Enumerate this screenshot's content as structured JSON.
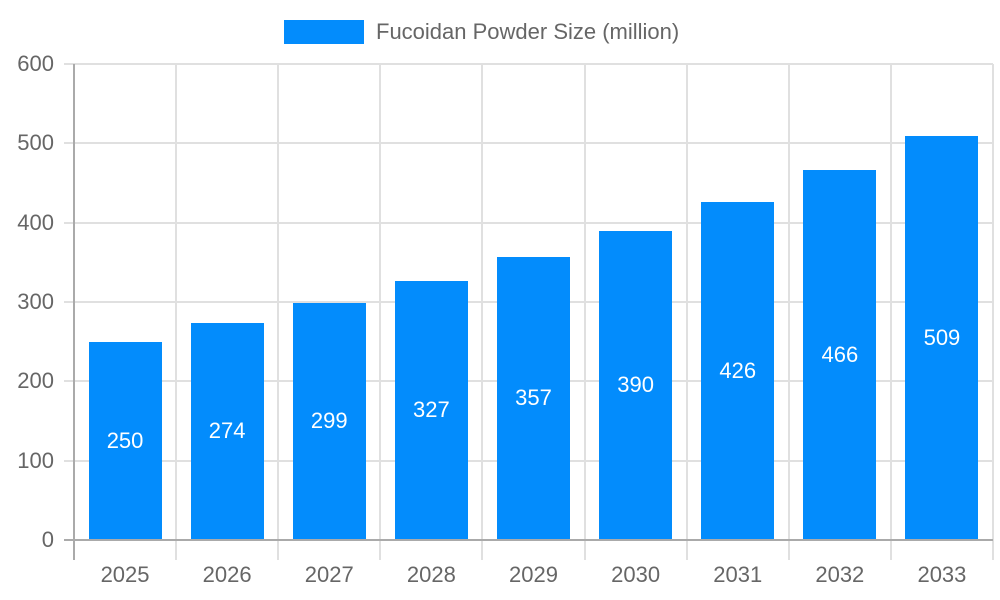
{
  "chart_data": {
    "type": "bar",
    "title": "",
    "legend": [
      {
        "label": "Fucoidan Powder Size (million)",
        "color": "#038cfc"
      }
    ],
    "legend_position": "top",
    "categories": [
      "2025",
      "2026",
      "2027",
      "2028",
      "2029",
      "2030",
      "2031",
      "2032",
      "2033"
    ],
    "series": [
      {
        "name": "Fucoidan Powder Size (million)",
        "values": [
          250,
          274,
          299,
          327,
          357,
          390,
          426,
          466,
          509
        ],
        "color": "#038cfc"
      }
    ],
    "xlabel": "",
    "ylabel": "",
    "ylim": [
      0,
      600
    ],
    "yticks": [
      "0",
      "100",
      "200",
      "300",
      "400",
      "500",
      "600"
    ],
    "grid": true,
    "data_labels": true
  }
}
